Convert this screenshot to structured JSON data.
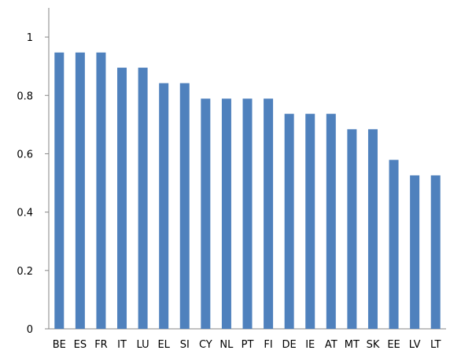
{
  "chart_data": {
    "type": "bar",
    "categories": [
      "BE",
      "ES",
      "FR",
      "IT",
      "LU",
      "EL",
      "SI",
      "CY",
      "NL",
      "PT",
      "FI",
      "DE",
      "IE",
      "AT",
      "MT",
      "SK",
      "EE",
      "LV",
      "LT"
    ],
    "values": [
      0.947,
      0.947,
      0.947,
      0.895,
      0.895,
      0.842,
      0.842,
      0.789,
      0.789,
      0.789,
      0.789,
      0.737,
      0.737,
      0.737,
      0.684,
      0.684,
      0.579,
      0.526,
      0.526
    ],
    "title": "",
    "xlabel": "",
    "ylabel": "",
    "ylim": [
      0,
      1.1
    ],
    "yticks": [
      0,
      0.2,
      0.4,
      0.6,
      0.8,
      1
    ],
    "ytick_labels": [
      "0",
      "0.2",
      "0.4",
      "0.6",
      "0.8",
      "1"
    ],
    "grid": false,
    "legend": "none",
    "bar_color": "#4F81BD",
    "axis_color": "#868686"
  }
}
